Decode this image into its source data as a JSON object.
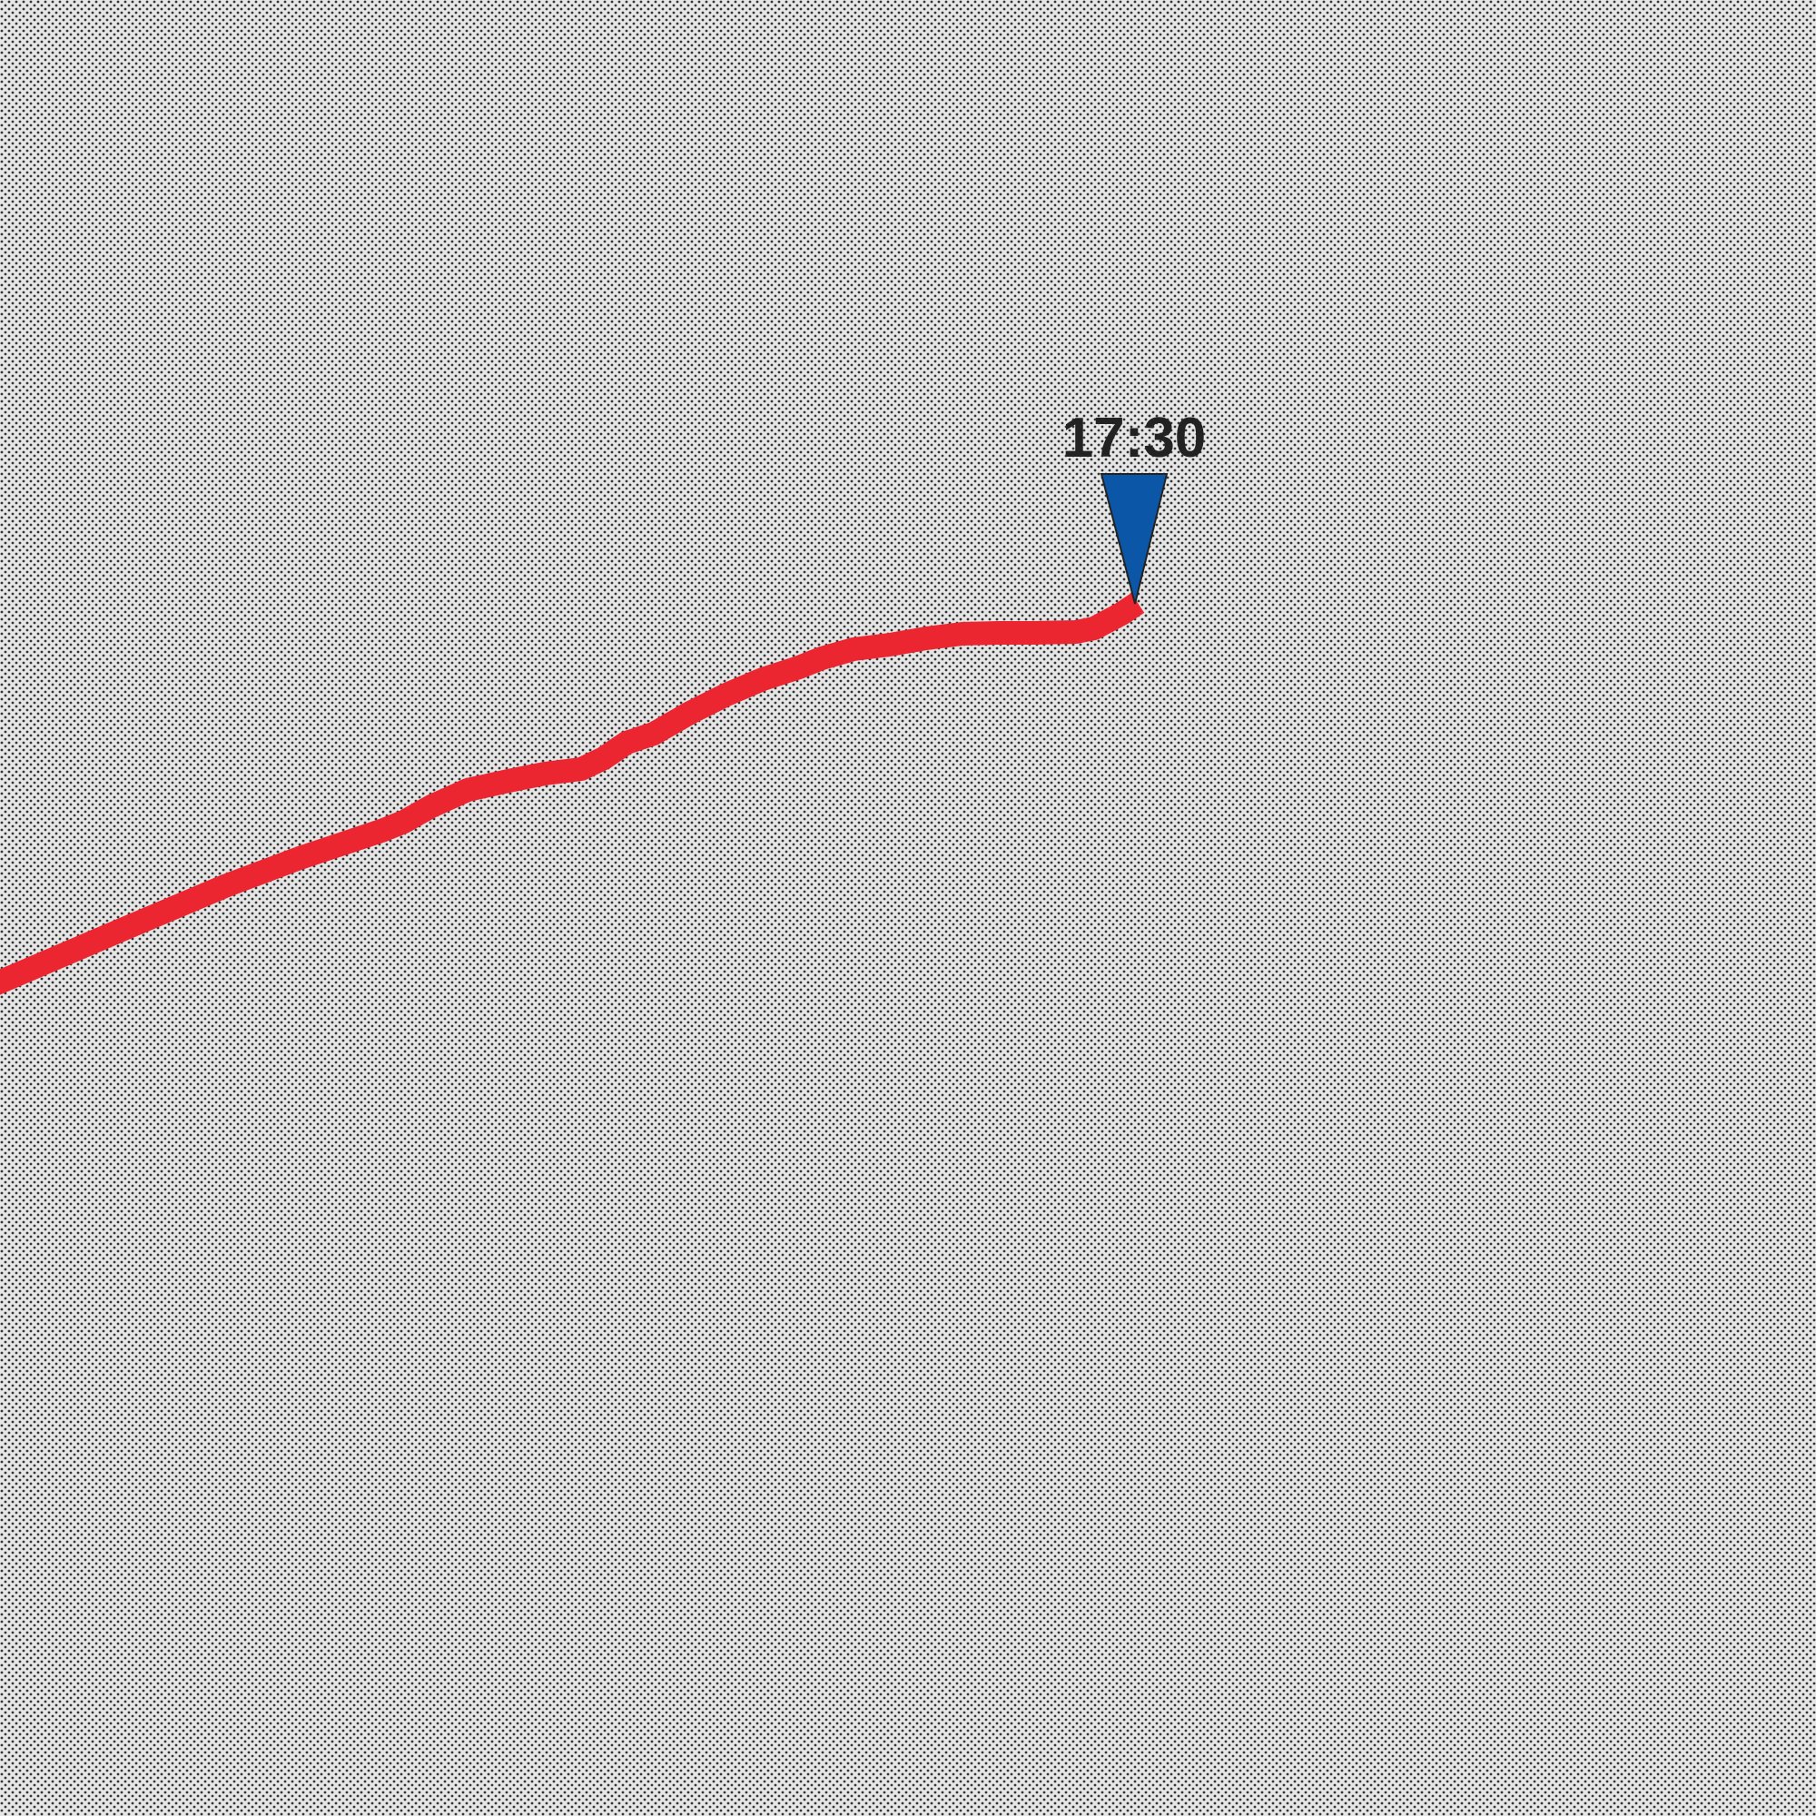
{
  "map": {
    "background_color": "#d9d9d9",
    "pattern_dot_color": "#333333",
    "route": {
      "color": "#ec2631"
    },
    "marker": {
      "icon": "triangle-pointer-icon",
      "fill_color": "#0b56a6",
      "outline_color": "#222222",
      "time_label": "17:30"
    }
  }
}
